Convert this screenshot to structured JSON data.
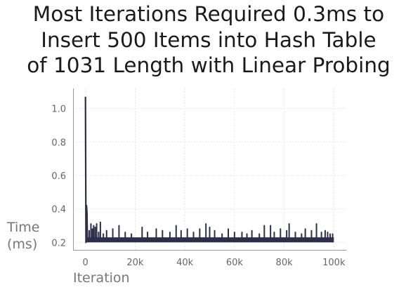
{
  "chart_data": {
    "type": "line",
    "title_lines": [
      "Most Iterations Required 0.3ms to",
      "Insert 500 Items into Hash Table",
      "of 1031 Length with Linear Probing"
    ],
    "xlabel": "Iteration",
    "ylabel_lines": [
      "Time",
      "(ms)"
    ],
    "xlim": [
      -5000,
      105000
    ],
    "ylim": [
      0.155,
      1.12
    ],
    "xticks": [
      0,
      20000,
      40000,
      60000,
      80000,
      100000
    ],
    "xtick_labels": [
      "0",
      "20k",
      "40k",
      "60k",
      "80k",
      "100k"
    ],
    "yticks": [
      0.2,
      0.4,
      0.6,
      0.8,
      1.0
    ],
    "ytick_labels": [
      "0.2",
      "0.4",
      "0.6",
      "0.8",
      "1.0"
    ],
    "grid": true,
    "line_color": "#2d2f4a",
    "series": [
      {
        "x_count": 100000,
        "base_range": [
          0.2,
          0.23
        ],
        "initial_points": [
          [
            0,
            1.07
          ],
          [
            200,
            0.2
          ],
          [
            400,
            0.42
          ],
          [
            600,
            0.38
          ],
          [
            800,
            0.21
          ]
        ],
        "spikes": [
          [
            1500,
            0.27
          ],
          [
            2200,
            0.31
          ],
          [
            2800,
            0.28
          ],
          [
            3300,
            0.3
          ],
          [
            3900,
            0.29
          ],
          [
            4500,
            0.31
          ],
          [
            5300,
            0.26
          ],
          [
            6000,
            0.32
          ],
          [
            7200,
            0.25
          ],
          [
            8500,
            0.27
          ],
          [
            11000,
            0.28
          ],
          [
            13500,
            0.3
          ],
          [
            16000,
            0.26
          ],
          [
            18500,
            0.25
          ],
          [
            22800,
            0.29
          ],
          [
            25000,
            0.26
          ],
          [
            28500,
            0.28
          ],
          [
            31000,
            0.27
          ],
          [
            34000,
            0.26
          ],
          [
            36500,
            0.3
          ],
          [
            38500,
            0.27
          ],
          [
            41000,
            0.28
          ],
          [
            43500,
            0.26
          ],
          [
            46000,
            0.28
          ],
          [
            48500,
            0.31
          ],
          [
            50000,
            0.29
          ],
          [
            52000,
            0.27
          ],
          [
            55000,
            0.25
          ],
          [
            57500,
            0.28
          ],
          [
            60000,
            0.26
          ],
          [
            63000,
            0.26
          ],
          [
            65000,
            0.25
          ],
          [
            67000,
            0.27
          ],
          [
            70000,
            0.25
          ],
          [
            72000,
            0.3
          ],
          [
            74500,
            0.3
          ],
          [
            76000,
            0.26
          ],
          [
            78500,
            0.28
          ],
          [
            81000,
            0.27
          ],
          [
            82000,
            0.31
          ],
          [
            84500,
            0.26
          ],
          [
            87000,
            0.25
          ],
          [
            88500,
            0.28
          ],
          [
            91000,
            0.27
          ],
          [
            93000,
            0.31
          ],
          [
            95000,
            0.26
          ],
          [
            96500,
            0.27
          ],
          [
            97500,
            0.26
          ],
          [
            98500,
            0.25
          ],
          [
            99500,
            0.25
          ]
        ]
      }
    ]
  }
}
